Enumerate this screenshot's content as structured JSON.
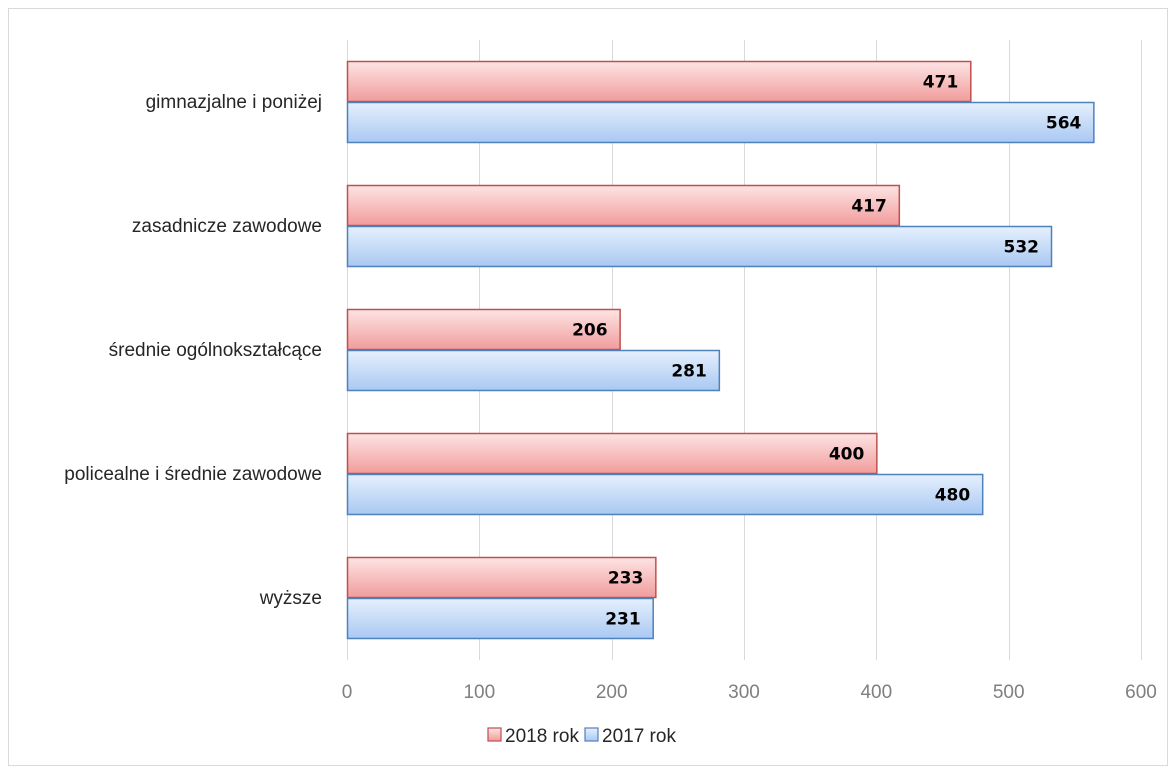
{
  "chart_data": {
    "type": "bar",
    "orientation": "horizontal",
    "title": "",
    "xlabel": "",
    "ylabel": "",
    "categories": [
      "gimnazjalne i poniżej",
      "zasadnicze zawodowe",
      "średnie ogólnokształcące",
      "policealne i średnie zawodowe",
      "wyższe"
    ],
    "series": [
      {
        "name": "2018 rok",
        "values": [
          471,
          417,
          206,
          400,
          233
        ],
        "color": "#f4a6a6",
        "edge": "#c0504d"
      },
      {
        "name": "2017 rok",
        "values": [
          564,
          532,
          281,
          480,
          231
        ],
        "color": "#b9d3f7",
        "edge": "#4f81bd"
      }
    ],
    "xlim": [
      0,
      600
    ],
    "xticks": [
      0,
      100,
      200,
      300,
      400,
      500,
      600
    ],
    "grid": true,
    "legend": "bottom-center",
    "data_labels": true
  }
}
